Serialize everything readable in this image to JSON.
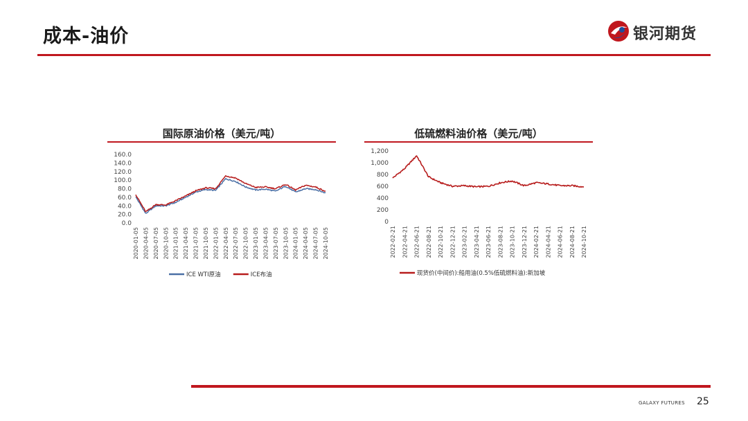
{
  "slide": {
    "title": "成本-油价",
    "page_number": "25",
    "footer_brand": "GALAXY FUTURES"
  },
  "logo": {
    "text": "银河期货"
  },
  "colors": {
    "accent": "#c0171e",
    "wti": "#4a6fa5",
    "brent": "#b71c1c"
  },
  "chart_data": [
    {
      "type": "line",
      "title": "国际原油价格（美元/吨）",
      "x": [
        "2020-01-05",
        "2020-04-05",
        "2020-07-05",
        "2020-10-05",
        "2021-01-05",
        "2021-04-05",
        "2021-07-05",
        "2021-10-05",
        "2022-01-05",
        "2022-04-05",
        "2022-07-05",
        "2022-10-05",
        "2023-01-05",
        "2023-04-05",
        "2023-07-05",
        "2023-10-05",
        "2024-01-05",
        "2024-04-05",
        "2024-07-05",
        "2024-10-05"
      ],
      "xlabel": "",
      "ylabel": "",
      "ylim": [
        0,
        160
      ],
      "yticks": [
        "0.0",
        "20.0",
        "40.0",
        "60.0",
        "80.0",
        "100.0",
        "120.0",
        "140.0",
        "160.0"
      ],
      "legend": "bottom",
      "series": [
        {
          "name": "ICE WTI原油",
          "color": "#4a6fa5",
          "values": [
            61,
            22,
            40,
            40,
            48,
            60,
            72,
            78,
            76,
            103,
            97,
            84,
            77,
            79,
            74,
            86,
            72,
            80,
            78,
            70
          ]
        },
        {
          "name": "ICE布油",
          "color": "#b71c1c",
          "values": [
            66,
            26,
            43,
            42,
            52,
            63,
            75,
            82,
            80,
            110,
            105,
            92,
            83,
            84,
            80,
            90,
            77,
            88,
            84,
            74
          ]
        }
      ]
    },
    {
      "type": "line",
      "title": "低硫燃料油价格（美元/吨）",
      "x": [
        "2022-02-21",
        "2022-04-21",
        "2022-06-21",
        "2022-08-21",
        "2022-10-21",
        "2022-12-21",
        "2023-02-21",
        "2023-04-21",
        "2023-06-21",
        "2023-08-21",
        "2023-10-21",
        "2023-12-21",
        "2024-02-21",
        "2024-04-21",
        "2024-06-21",
        "2024-08-21",
        "2024-10-21"
      ],
      "xlabel": "",
      "ylabel": "",
      "ylim": [
        0,
        1200
      ],
      "yticks": [
        "0",
        "200",
        "400",
        "600",
        "800",
        "1,000",
        "1,200"
      ],
      "legend": "bottom",
      "series": [
        {
          "name": "现货价(中间价):船用油(0.5%低硫燃料油):新加坡",
          "color": "#b71c1c",
          "values": [
            740,
            900,
            1120,
            760,
            660,
            600,
            610,
            590,
            600,
            660,
            690,
            610,
            660,
            640,
            610,
            610,
            590
          ]
        }
      ]
    }
  ]
}
